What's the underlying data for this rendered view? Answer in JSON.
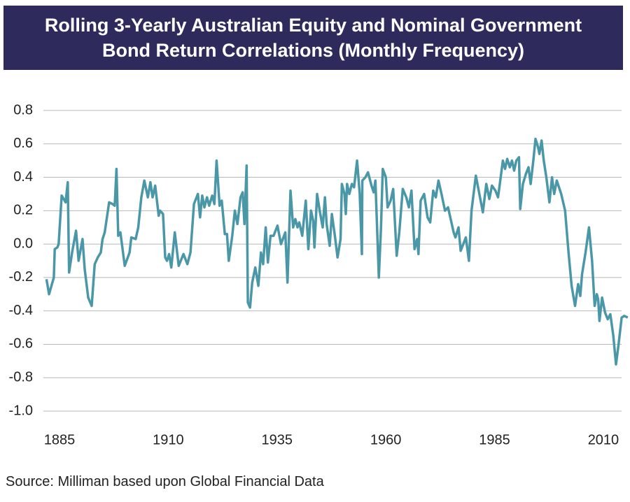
{
  "chart_data": {
    "type": "line",
    "title": "Rolling 3-Yearly Australian Equity and Nominal Government\nBond Return Correlations (Monthly Frequency)",
    "source": "Source: Milliman based upon Global Financial Data",
    "color": "#4a97a8",
    "grid": true,
    "xlim": [
      1881.3,
      2015.8
    ],
    "xticks": [
      1885,
      1910,
      1935,
      1960,
      1985,
      2010
    ],
    "ylim": [
      -1.0,
      0.8
    ],
    "yticks": [
      0.8,
      0.6,
      0.4,
      0.2,
      {
        "value": 0,
        "label": "0.0"
      },
      -0.2,
      -0.4,
      -0.6,
      -0.8,
      {
        "value": -1.0,
        "label": "-1.0"
      }
    ],
    "x": [
      1882.0,
      1882.6,
      1883.7,
      1883.9,
      1884.5,
      1884.8,
      1885.5,
      1886.4,
      1886.9,
      1887.2,
      1887.9,
      1888.8,
      1889.4,
      1890.3,
      1890.8,
      1891.6,
      1892.4,
      1893.1,
      1893.8,
      1894.5,
      1894.9,
      1895.4,
      1896.4,
      1897.2,
      1897.7,
      1898.1,
      1898.5,
      1899.0,
      1900.0,
      1901.1,
      1901.5,
      1902.5,
      1903.1,
      1903.8,
      1904.5,
      1905.3,
      1905.9,
      1906.4,
      1907.0,
      1907.8,
      1908.1,
      1908.8,
      1909.3,
      1909.7,
      1910.2,
      1910.7,
      1911.5,
      1912.4,
      1913.5,
      1914.4,
      1915.1,
      1915.9,
      1916.8,
      1917.3,
      1917.8,
      1918.3,
      1918.9,
      1919.4,
      1920.1,
      1920.6,
      1921.1,
      1921.8,
      1922.3,
      1923.0,
      1923.5,
      1923.9,
      1924.7,
      1925.3,
      1925.9,
      1926.6,
      1927.1,
      1927.5,
      1928.0,
      1928.3,
      1928.8,
      1929.3,
      1930.0,
      1930.7,
      1931.3,
      1931.8,
      1932.4,
      1932.9,
      1933.5,
      1934.2,
      1935.1,
      1935.9,
      1936.9,
      1937.4,
      1938.1,
      1938.7,
      1939.2,
      1939.7,
      1940.1,
      1940.8,
      1941.6,
      1942.2,
      1942.8,
      1943.3,
      1943.6,
      1944.2,
      1944.8,
      1945.5,
      1946.0,
      1946.4,
      1947.1,
      1947.6,
      1948.3,
      1948.9,
      1949.6,
      1949.9,
      1950.5,
      1950.8,
      1951.1,
      1951.6,
      1952.2,
      1952.7,
      1953.4,
      1954.0,
      1954.5,
      1954.6,
      1955.3,
      1955.9,
      1956.7,
      1957.2,
      1957.6,
      1958.4,
      1958.9,
      1959.3,
      1960.0,
      1960.4,
      1961.1,
      1961.7,
      1962.5,
      1963.1,
      1963.9,
      1964.7,
      1965.3,
      1965.9,
      1966.6,
      1967.2,
      1967.5,
      1968.0,
      1968.8,
      1969.6,
      1970.2,
      1970.9,
      1971.5,
      1972.1,
      1972.8,
      1973.6,
      1974.3,
      1974.9,
      1975.6,
      1976.0,
      1976.7,
      1977.2,
      1977.8,
      1978.4,
      1979.1,
      1979.7,
      1980.7,
      1981.5,
      1982.3,
      1983.1,
      1983.8,
      1984.4,
      1985.2,
      1985.8,
      1986.5,
      1986.9,
      1987.4,
      1987.9,
      1988.5,
      1989.0,
      1989.5,
      1990.0,
      1990.6,
      1990.9,
      1991.5,
      1992.2,
      1992.8,
      1993.3,
      1993.9,
      1994.4,
      1995.0,
      1995.3,
      1995.8,
      1996.3,
      1996.9,
      1997.6,
      1998.2,
      1998.7,
      1999.3,
      2000.3,
      2001.2,
      2002.0,
      2002.7,
      2003.5,
      2004.2,
      2004.7,
      2005.1,
      2005.9,
      2006.7,
      2007.4,
      2008.0,
      2008.5,
      2008.8,
      2009.1,
      2009.7,
      2010.4,
      2011.0,
      2011.6,
      2012.3,
      2012.9,
      2013.5,
      2014.2,
      2014.8,
      2015.6
    ],
    "values": [
      -0.21,
      -0.3,
      -0.2,
      -0.03,
      -0.02,
      0.0,
      0.29,
      0.25,
      0.37,
      -0.17,
      -0.05,
      0.08,
      -0.1,
      0.03,
      -0.15,
      -0.32,
      -0.37,
      -0.12,
      -0.08,
      -0.05,
      0.03,
      0.07,
      0.25,
      0.24,
      0.23,
      0.45,
      0.05,
      0.07,
      -0.13,
      -0.05,
      0.04,
      0.03,
      0.1,
      0.28,
      0.38,
      0.28,
      0.37,
      0.28,
      0.35,
      0.17,
      0.2,
      0.18,
      -0.08,
      -0.1,
      -0.06,
      -0.14,
      0.07,
      -0.13,
      -0.06,
      -0.12,
      -0.05,
      0.24,
      0.3,
      0.16,
      0.29,
      0.22,
      0.28,
      0.23,
      0.29,
      0.24,
      0.5,
      0.23,
      0.26,
      0.06,
      0.06,
      -0.1,
      0.05,
      0.2,
      0.12,
      0.28,
      0.31,
      0.12,
      0.47,
      -0.35,
      -0.38,
      -0.23,
      -0.14,
      -0.25,
      -0.05,
      -0.12,
      0.1,
      -0.11,
      0.05,
      0.05,
      0.11,
      0.0,
      0.07,
      -0.23,
      0.32,
      0.1,
      0.15,
      0.1,
      0.13,
      0.05,
      0.26,
      -0.03,
      0.2,
      0.14,
      -0.02,
      0.3,
      0.2,
      0.1,
      0.28,
      0.12,
      -0.01,
      0.18,
      0.05,
      -0.08,
      0.03,
      0.36,
      0.3,
      0.18,
      0.36,
      0.3,
      0.36,
      0.34,
      0.5,
      0.3,
      -0.06,
      0.38,
      0.4,
      0.43,
      0.35,
      0.31,
      0.38,
      -0.2,
      0.1,
      0.45,
      0.4,
      0.22,
      0.26,
      0.33,
      -0.07,
      0.07,
      0.33,
      0.28,
      0.22,
      0.32,
      -0.03,
      0.03,
      -0.06,
      0.26,
      0.3,
      0.16,
      0.13,
      0.32,
      0.28,
      0.38,
      0.3,
      0.2,
      0.22,
      0.15,
      0.07,
      0.04,
      0.1,
      -0.04,
      0.0,
      0.04,
      -0.1,
      0.2,
      0.41,
      0.3,
      0.19,
      0.36,
      0.27,
      0.35,
      0.32,
      0.28,
      0.42,
      0.5,
      0.45,
      0.51,
      0.46,
      0.5,
      0.44,
      0.5,
      0.52,
      0.21,
      0.36,
      0.42,
      0.46,
      0.36,
      0.5,
      0.63,
      0.58,
      0.54,
      0.62,
      0.5,
      0.4,
      0.25,
      0.4,
      0.3,
      0.38,
      0.3,
      0.2,
      -0.05,
      -0.25,
      -0.37,
      -0.24,
      -0.31,
      -0.18,
      -0.05,
      0.1,
      -0.1,
      -0.37,
      -0.3,
      -0.33,
      -0.46,
      -0.32,
      -0.41,
      -0.45,
      -0.42,
      -0.55,
      -0.72,
      -0.6,
      -0.44,
      -0.43,
      -0.44
    ]
  }
}
